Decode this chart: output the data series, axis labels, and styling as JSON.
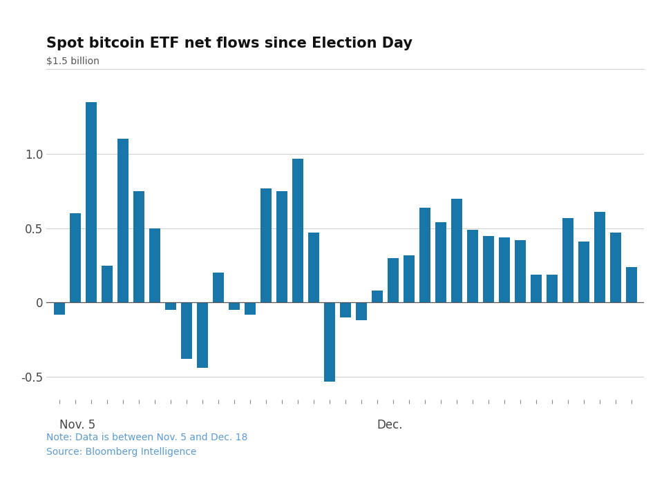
{
  "title": "Spot bitcoin ETF net flows since Election Day",
  "ylabel": "$1.5 billion",
  "note": "Note: Data is between Nov. 5 and Dec. 18",
  "source": "Source: Bloomberg Intelligence",
  "bar_color": "#1877a8",
  "background_color": "#ffffff",
  "values": [
    -0.08,
    0.6,
    1.35,
    0.25,
    1.1,
    0.75,
    0.5,
    -0.05,
    -0.38,
    -0.44,
    0.2,
    -0.05,
    -0.08,
    0.77,
    0.75,
    0.97,
    0.47,
    -0.53,
    -0.1,
    -0.12,
    0.08,
    0.3,
    0.32,
    0.64,
    0.54,
    0.7,
    0.49,
    0.45,
    0.44,
    0.42,
    0.19,
    0.19,
    0.57,
    0.41,
    0.61,
    0.47,
    0.24
  ],
  "nov5_bar_index": 0,
  "dec_bar_index": 20,
  "ylim": [
    -0.65,
    1.55
  ],
  "yticks": [
    -0.5,
    0.0,
    0.5,
    1.0
  ],
  "ytick_labels": [
    "-0.5",
    "0",
    "0.5",
    "1.0"
  ],
  "title_fontsize": 15,
  "ylabel_fontsize": 10,
  "tick_fontsize": 12,
  "note_fontsize": 10,
  "note_color": "#5b9bd5",
  "grid_color": "#d0d0d0",
  "zero_line_color": "#555555",
  "tick_color": "#888888",
  "ytick_color": "#444444"
}
